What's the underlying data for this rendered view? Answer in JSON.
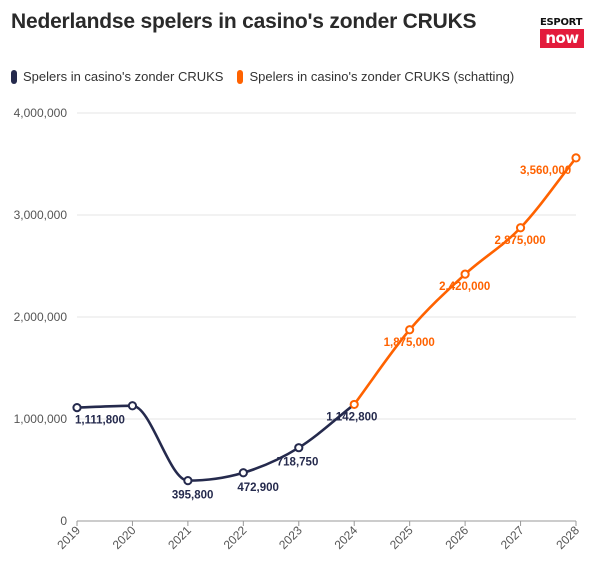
{
  "title": "Nederlandse spelers in casino's zonder CRUKS",
  "logo": {
    "top": "ESPORT",
    "bottom": "now"
  },
  "colors": {
    "actual": "#252a4d",
    "estimate": "#ff6200",
    "grid": "#e6e6e6",
    "logo": "#e31b3c"
  },
  "chart_data": {
    "type": "line",
    "x": [
      "2019",
      "2020",
      "2021",
      "2022",
      "2023",
      "2024",
      "2025",
      "2026",
      "2027",
      "2028"
    ],
    "ylim": [
      0,
      4000000
    ],
    "yticks": [
      0,
      1000000,
      2000000,
      3000000,
      4000000
    ],
    "ytick_labels": [
      "0",
      "1,000,000",
      "2,000,000",
      "3,000,000",
      "4,000,000"
    ],
    "grid": true,
    "legend_position": "top-left",
    "series": [
      {
        "name": "Spelers in casino's zonder CRUKS",
        "color": "#252a4d",
        "x": [
          "2019",
          "2020",
          "2021",
          "2022",
          "2023",
          "2024"
        ],
        "values": [
          1111800,
          1130000,
          395800,
          472900,
          718750,
          1142800
        ],
        "labels": [
          "1,111,800",
          "",
          "395,800",
          "472,900",
          "718,750",
          "1,142,800"
        ]
      },
      {
        "name": "Spelers in casino's zonder CRUKS (schatting)",
        "color": "#ff6200",
        "x": [
          "2024",
          "2025",
          "2026",
          "2027",
          "2028"
        ],
        "values": [
          1142800,
          1875000,
          2420000,
          2875000,
          3560000
        ],
        "labels": [
          "",
          "1,875,000",
          "2,420,000",
          "2,875,000",
          "3,560,000"
        ]
      }
    ]
  }
}
